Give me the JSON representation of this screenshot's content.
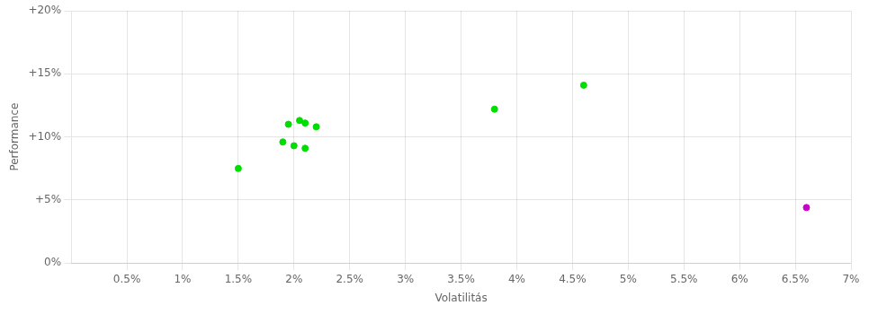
{
  "chart_data": {
    "type": "scatter",
    "xlabel": "Volatilitás",
    "ylabel": "Performance",
    "series": [
      {
        "color": "#00dd00",
        "x": [
          0.015,
          0.019,
          0.02,
          0.021,
          0.0195,
          0.0205,
          0.021,
          0.022,
          0.038,
          0.046
        ],
        "values": [
          0.075,
          0.096,
          0.093,
          0.091,
          0.11,
          0.113,
          0.111,
          0.108,
          0.122,
          0.141
        ]
      },
      {
        "color": "#cc00cc",
        "x": [
          0.066
        ],
        "values": [
          0.044
        ]
      }
    ],
    "xlim": [
      0.0,
      0.07
    ],
    "xticks": [
      {
        "value": 0.005,
        "label": "0.5%"
      },
      {
        "value": 0.01,
        "label": "1%"
      },
      {
        "value": 0.015,
        "label": "1.5%"
      },
      {
        "value": 0.02,
        "label": "2%"
      },
      {
        "value": 0.025,
        "label": "2.5%"
      },
      {
        "value": 0.03,
        "label": "3%"
      },
      {
        "value": 0.035,
        "label": "3.5%"
      },
      {
        "value": 0.04,
        "label": "4%"
      },
      {
        "value": 0.045,
        "label": "4.5%"
      },
      {
        "value": 0.05,
        "label": "5%"
      },
      {
        "value": 0.055,
        "label": "5.5%"
      },
      {
        "value": 0.06,
        "label": "6%"
      },
      {
        "value": 0.065,
        "label": "6.5%"
      },
      {
        "value": 0.07,
        "label": "7%"
      }
    ],
    "ylim": [
      0.0,
      0.2
    ],
    "yticks": [
      {
        "value": 0.0,
        "label": "0%"
      },
      {
        "value": 0.05,
        "label": "+5%"
      },
      {
        "value": 0.1,
        "label": "+10%"
      },
      {
        "value": 0.15,
        "label": "+15%"
      },
      {
        "value": 0.2,
        "label": "+20%"
      }
    ],
    "grid": true
  }
}
